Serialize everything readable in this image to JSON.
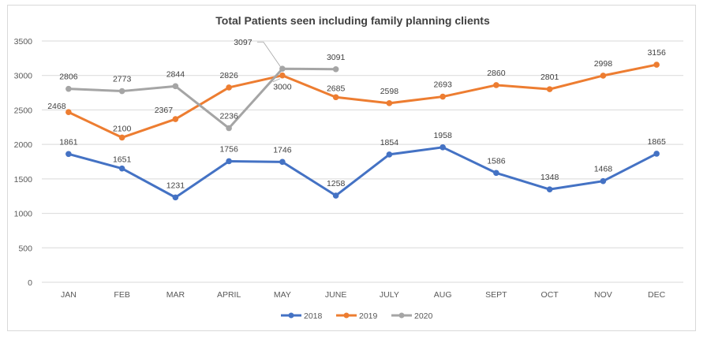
{
  "chart_data": {
    "type": "line",
    "title": "Total Patients seen including family planning clients",
    "xlabel": "",
    "ylabel": "",
    "categories": [
      "JAN",
      "FEB",
      "MAR",
      "APRIL",
      "MAY",
      "JUNE",
      "JULY",
      "AUG",
      "SEPT",
      "OCT",
      "NOV",
      "DEC"
    ],
    "ylim": [
      0,
      3500
    ],
    "yticks": [
      0,
      500,
      1000,
      1500,
      2000,
      2500,
      3000,
      3500
    ],
    "grid": true,
    "legend_position": "bottom",
    "series": [
      {
        "name": "2018",
        "color": "#4472c4",
        "values": [
          1861,
          1651,
          1231,
          1756,
          1746,
          1258,
          1854,
          1958,
          1586,
          1348,
          1468,
          1865
        ]
      },
      {
        "name": "2019",
        "color": "#ed7d31",
        "values": [
          2468,
          2100,
          2367,
          2826,
          3000,
          2685,
          2598,
          2693,
          2860,
          2801,
          2998,
          3156
        ]
      },
      {
        "name": "2020",
        "color": "#a5a5a5",
        "values": [
          2806,
          2773,
          2844,
          2236,
          3097,
          3091,
          null,
          null,
          null,
          null,
          null,
          null
        ]
      }
    ]
  }
}
